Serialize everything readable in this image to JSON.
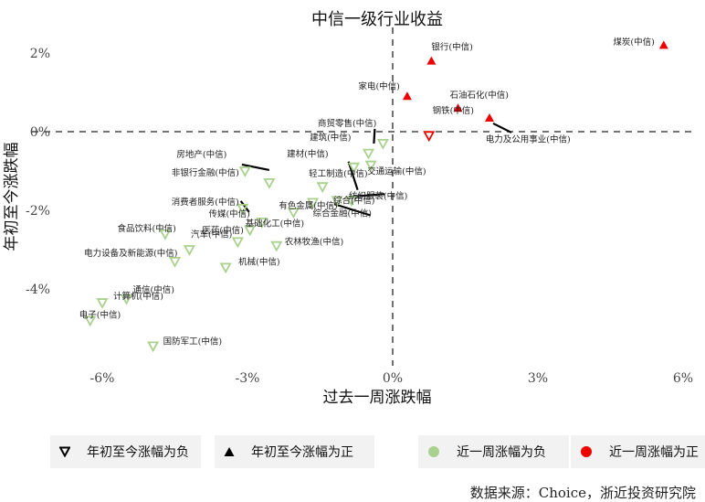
{
  "chart_data": {
    "type": "scatter",
    "title": "中信一级行业收益",
    "xlabel": "过去一周涨跌幅",
    "ylabel": "年初至今涨跌幅",
    "xlim": [
      -6.2,
      6.2
    ],
    "ylim": [
      -5.8,
      2.2
    ],
    "x_ticks": [
      "-6%",
      "-3%",
      "0%",
      "3%",
      "6%"
    ],
    "x_tick_values": [
      -6,
      -3,
      0,
      3,
      6
    ],
    "y_ticks": [
      "2%",
      "0%",
      "-2%",
      "-4%"
    ],
    "y_tick_values": [
      2,
      0,
      -2,
      -4
    ],
    "grid": false,
    "reference_lines": "dashed lines at x = 0 and y = 0",
    "legend_placement": "bottom",
    "colors": {
      "week_negative": "#a9d18e",
      "week_positive": "#ee0000"
    },
    "series": [
      {
        "name": "年初至今涨幅为负",
        "marker": "open-down-triangle"
      },
      {
        "name": "年初至今涨幅为正",
        "marker": "filled-up-triangle"
      },
      {
        "name": "近一周涨幅为负",
        "color": "#a9d18e"
      },
      {
        "name": "近一周涨幅为正",
        "color": "#ee0000"
      }
    ],
    "points": [
      {
        "label": "煤炭(中信)",
        "x": 5.6,
        "y": 2.2
      },
      {
        "label": "银行(中信)",
        "x": 0.8,
        "y": 1.8
      },
      {
        "label": "家电(中信)",
        "x": 0.3,
        "y": 0.9
      },
      {
        "label": "石油石化(中信)",
        "x": 1.35,
        "y": 0.6
      },
      {
        "label": "钢铁(中信)",
        "x": 2.0,
        "y": 0.35
      },
      {
        "label": "电力及公用事业(中信)",
        "x": 0.75,
        "y": -0.1
      },
      {
        "label": "商贸零售(中信)",
        "x": -0.2,
        "y": -0.3
      },
      {
        "label": "建筑(中信)",
        "x": -0.5,
        "y": -0.55
      },
      {
        "label": "交通运输(中信)",
        "x": -0.45,
        "y": -0.85
      },
      {
        "label": "建材(中信)",
        "x": -0.8,
        "y": -0.9
      },
      {
        "label": "轻工制造(中信)",
        "x": -1.45,
        "y": -1.4
      },
      {
        "label": "房地产(中信)",
        "x": -3.05,
        "y": -1.0
      },
      {
        "label": "非银行金融(中信)",
        "x": -2.55,
        "y": -1.3
      },
      {
        "label": "纺织服装(中信)",
        "x": -0.85,
        "y": -1.75
      },
      {
        "label": "综合(中信)",
        "x": -1.15,
        "y": -1.75
      },
      {
        "label": "综合金融(中信)",
        "x": -1.65,
        "y": -1.8
      },
      {
        "label": "有色金属(中信)",
        "x": -2.05,
        "y": -2.05
      },
      {
        "label": "消费者服务(中信)",
        "x": -3.1,
        "y": -1.95
      },
      {
        "label": "传媒(中信)",
        "x": -2.7,
        "y": -2.3
      },
      {
        "label": "食品饮料(中信)",
        "x": -4.7,
        "y": -2.6
      },
      {
        "label": "基础化工(中信)",
        "x": -2.95,
        "y": -2.5
      },
      {
        "label": "汽车(中信)",
        "x": -3.2,
        "y": -2.8
      },
      {
        "label": "农林牧渔(中信)",
        "x": -2.4,
        "y": -2.9
      },
      {
        "label": "医药(中信)",
        "x": -4.2,
        "y": -3.0
      },
      {
        "label": "电力设备及新能源(中信)",
        "x": -4.5,
        "y": -3.3
      },
      {
        "label": "机械(中信)",
        "x": -3.45,
        "y": -3.45
      },
      {
        "label": "通信(中信)",
        "x": -5.5,
        "y": -4.25
      },
      {
        "label": "计算机(中信)",
        "x": -6.0,
        "y": -4.35
      },
      {
        "label": "电子(中信)",
        "x": -6.25,
        "y": -4.8
      },
      {
        "label": "国防军工(中信)",
        "x": -4.95,
        "y": -5.45
      }
    ]
  },
  "legend": [
    {
      "label": "年初至今涨幅为负",
      "icon": "open-down-triangle-icon"
    },
    {
      "label": "年初至今涨幅为正",
      "icon": "filled-up-triangle-icon"
    },
    {
      "label": "近一周涨幅为负",
      "icon": "green-dot-icon",
      "color": "#a9d18e"
    },
    {
      "label": "近一周涨幅为正",
      "icon": "red-dot-icon",
      "color": "#ee0000"
    }
  ],
  "source": "数据来源：Choice，浙近投资研究院"
}
